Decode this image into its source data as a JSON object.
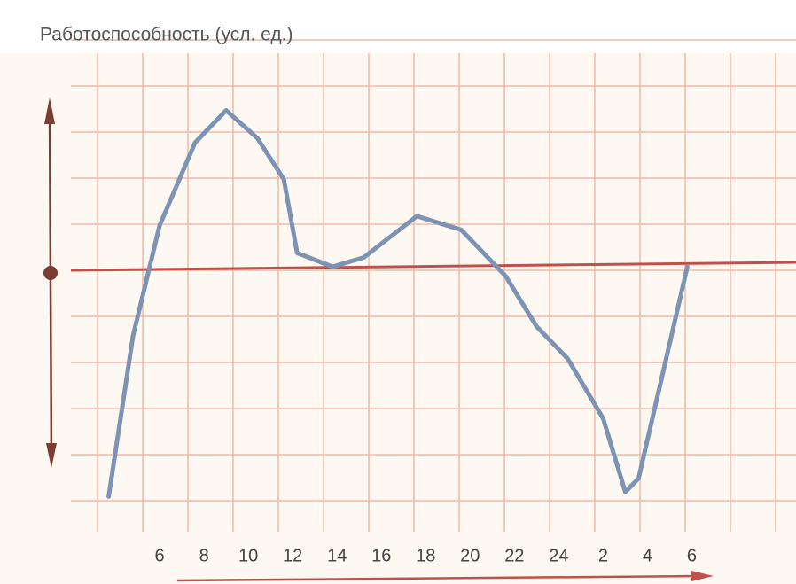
{
  "chart_data": {
    "type": "line",
    "title": "Работоспособность (усл. ед.)",
    "x": [
      3.7,
      4.8,
      6,
      7.6,
      9,
      10.4,
      11.6,
      12.2,
      13.8,
      15.2,
      17.6,
      19.6,
      21.6,
      23,
      24.4,
      26,
      27,
      27.6,
      29.8
    ],
    "values": [
      -4.9,
      -1.4,
      1.0,
      2.8,
      3.5,
      2.9,
      2.0,
      0.4,
      0.1,
      0.3,
      1.2,
      0.9,
      -0.1,
      -1.2,
      -1.9,
      -3.2,
      -4.8,
      -4.5,
      0.1
    ],
    "color": "#7d93b4",
    "xlim": [
      -1.2,
      34.7
    ],
    "ylim": [
      -6.8,
      5.9
    ],
    "xticks": [
      6,
      8,
      10,
      12,
      14,
      16,
      18,
      20,
      22,
      24,
      {
        "value": 26,
        "label": "2"
      },
      {
        "value": 28,
        "label": "4"
      },
      {
        "value": 30,
        "label": "6"
      }
    ]
  }
}
